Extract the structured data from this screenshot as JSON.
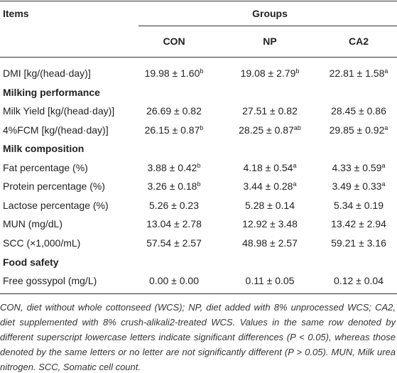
{
  "table": {
    "headers": {
      "items": "Items",
      "groups": "Groups",
      "columns": [
        "CON",
        "NP",
        "CA2"
      ]
    },
    "rows": [
      {
        "label": "DMI [kg/(head·day)]",
        "cells": [
          {
            "text": "19.98 ± 1.60",
            "sup": "b"
          },
          {
            "text": "19.08 ± 2.79",
            "sup": "b"
          },
          {
            "text": "22.81 ± 1.58",
            "sup": "a"
          }
        ]
      },
      {
        "section": "Milking performance"
      },
      {
        "label": "Milk Yield [kg/(head·day)]",
        "cells": [
          {
            "text": "26.69 ± 0.82"
          },
          {
            "text": "27.51 ± 0.82"
          },
          {
            "text": "28.45 ± 0.86"
          }
        ]
      },
      {
        "label": "4%FCM [kg/(head·day)]",
        "cells": [
          {
            "text": "26.15 ± 0.87",
            "sup": "b"
          },
          {
            "text": "28.25 ± 0.87",
            "sup": "ab"
          },
          {
            "text": "29.85 ± 0.92",
            "sup": "a"
          }
        ]
      },
      {
        "section": "Milk composition"
      },
      {
        "label": "Fat percentage (%)",
        "cells": [
          {
            "text": "3.88 ± 0.42",
            "sup": "b"
          },
          {
            "text": "4.18 ± 0.54",
            "sup": "a"
          },
          {
            "text": "4.33 ± 0.59",
            "sup": "a"
          }
        ]
      },
      {
        "label": "Protein percentage (%)",
        "cells": [
          {
            "text": "3.26 ± 0.18",
            "sup": "b"
          },
          {
            "text": "3.44 ± 0.28",
            "sup": "a"
          },
          {
            "text": "3.49 ± 0.33",
            "sup": "a"
          }
        ]
      },
      {
        "label": "Lactose percentage (%)",
        "cells": [
          {
            "text": "5.26 ± 0.23"
          },
          {
            "text": "5.28 ± 0.14"
          },
          {
            "text": "5.34 ± 0.19"
          }
        ]
      },
      {
        "label": "MUN (mg/dL)",
        "cells": [
          {
            "text": "13.04 ± 2.78"
          },
          {
            "text": "12.92 ± 3.48"
          },
          {
            "text": "13.42 ± 2.94"
          }
        ]
      },
      {
        "label": "SCC (×1,000/mL)",
        "cells": [
          {
            "text": "57.54 ± 2.57"
          },
          {
            "text": "48.98 ± 2.57"
          },
          {
            "text": "59.21 ± 3.16"
          }
        ]
      },
      {
        "section": "Food safety"
      },
      {
        "label": "Free gossypol (mg/L)",
        "cells": [
          {
            "text": "0.00 ± 0.00"
          },
          {
            "text": "0.11 ± 0.05"
          },
          {
            "text": "0.12 ± 0.04"
          }
        ]
      }
    ]
  },
  "footnote": "CON, diet without whole cottonseed (WCS); NP, diet added with 8% unprocessed WCS; CA2, diet supplemented with 8% crush-alikali2-treated WCS. Values in the same row denoted by different superscript lowercase letters indicate significant differences (P < 0.05), whereas those denoted by the same letters or no letter are not significantly different (P > 0.05). MUN, Milk urea nitrogen. SCC, Somatic cell count."
}
